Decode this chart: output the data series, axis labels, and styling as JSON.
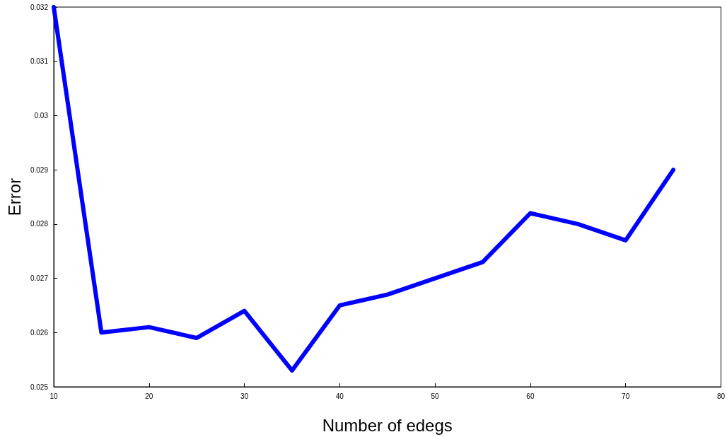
{
  "chart_data": {
    "type": "line",
    "xlabel": "Number of edegs",
    "ylabel": "Error",
    "x": [
      10,
      15,
      20,
      25,
      30,
      35,
      40,
      45,
      50,
      55,
      60,
      65,
      70,
      75
    ],
    "series": [
      {
        "color": "#0000ff",
        "values": [
          0.032,
          0.026,
          0.0261,
          0.0259,
          0.0264,
          0.0253,
          0.0265,
          0.0267,
          0.027,
          0.0273,
          0.0282,
          0.028,
          0.0277,
          0.029
        ]
      }
    ],
    "xlim": [
      10,
      80
    ],
    "xticks": [
      10,
      20,
      30,
      40,
      50,
      60,
      70,
      80
    ],
    "ylim": [
      0.025,
      0.032
    ],
    "yticks": [
      0.025,
      0.026,
      0.027,
      0.028,
      0.029,
      0.03,
      0.031,
      0.032
    ],
    "grid": false,
    "marker": "none",
    "line_style": "solid"
  }
}
